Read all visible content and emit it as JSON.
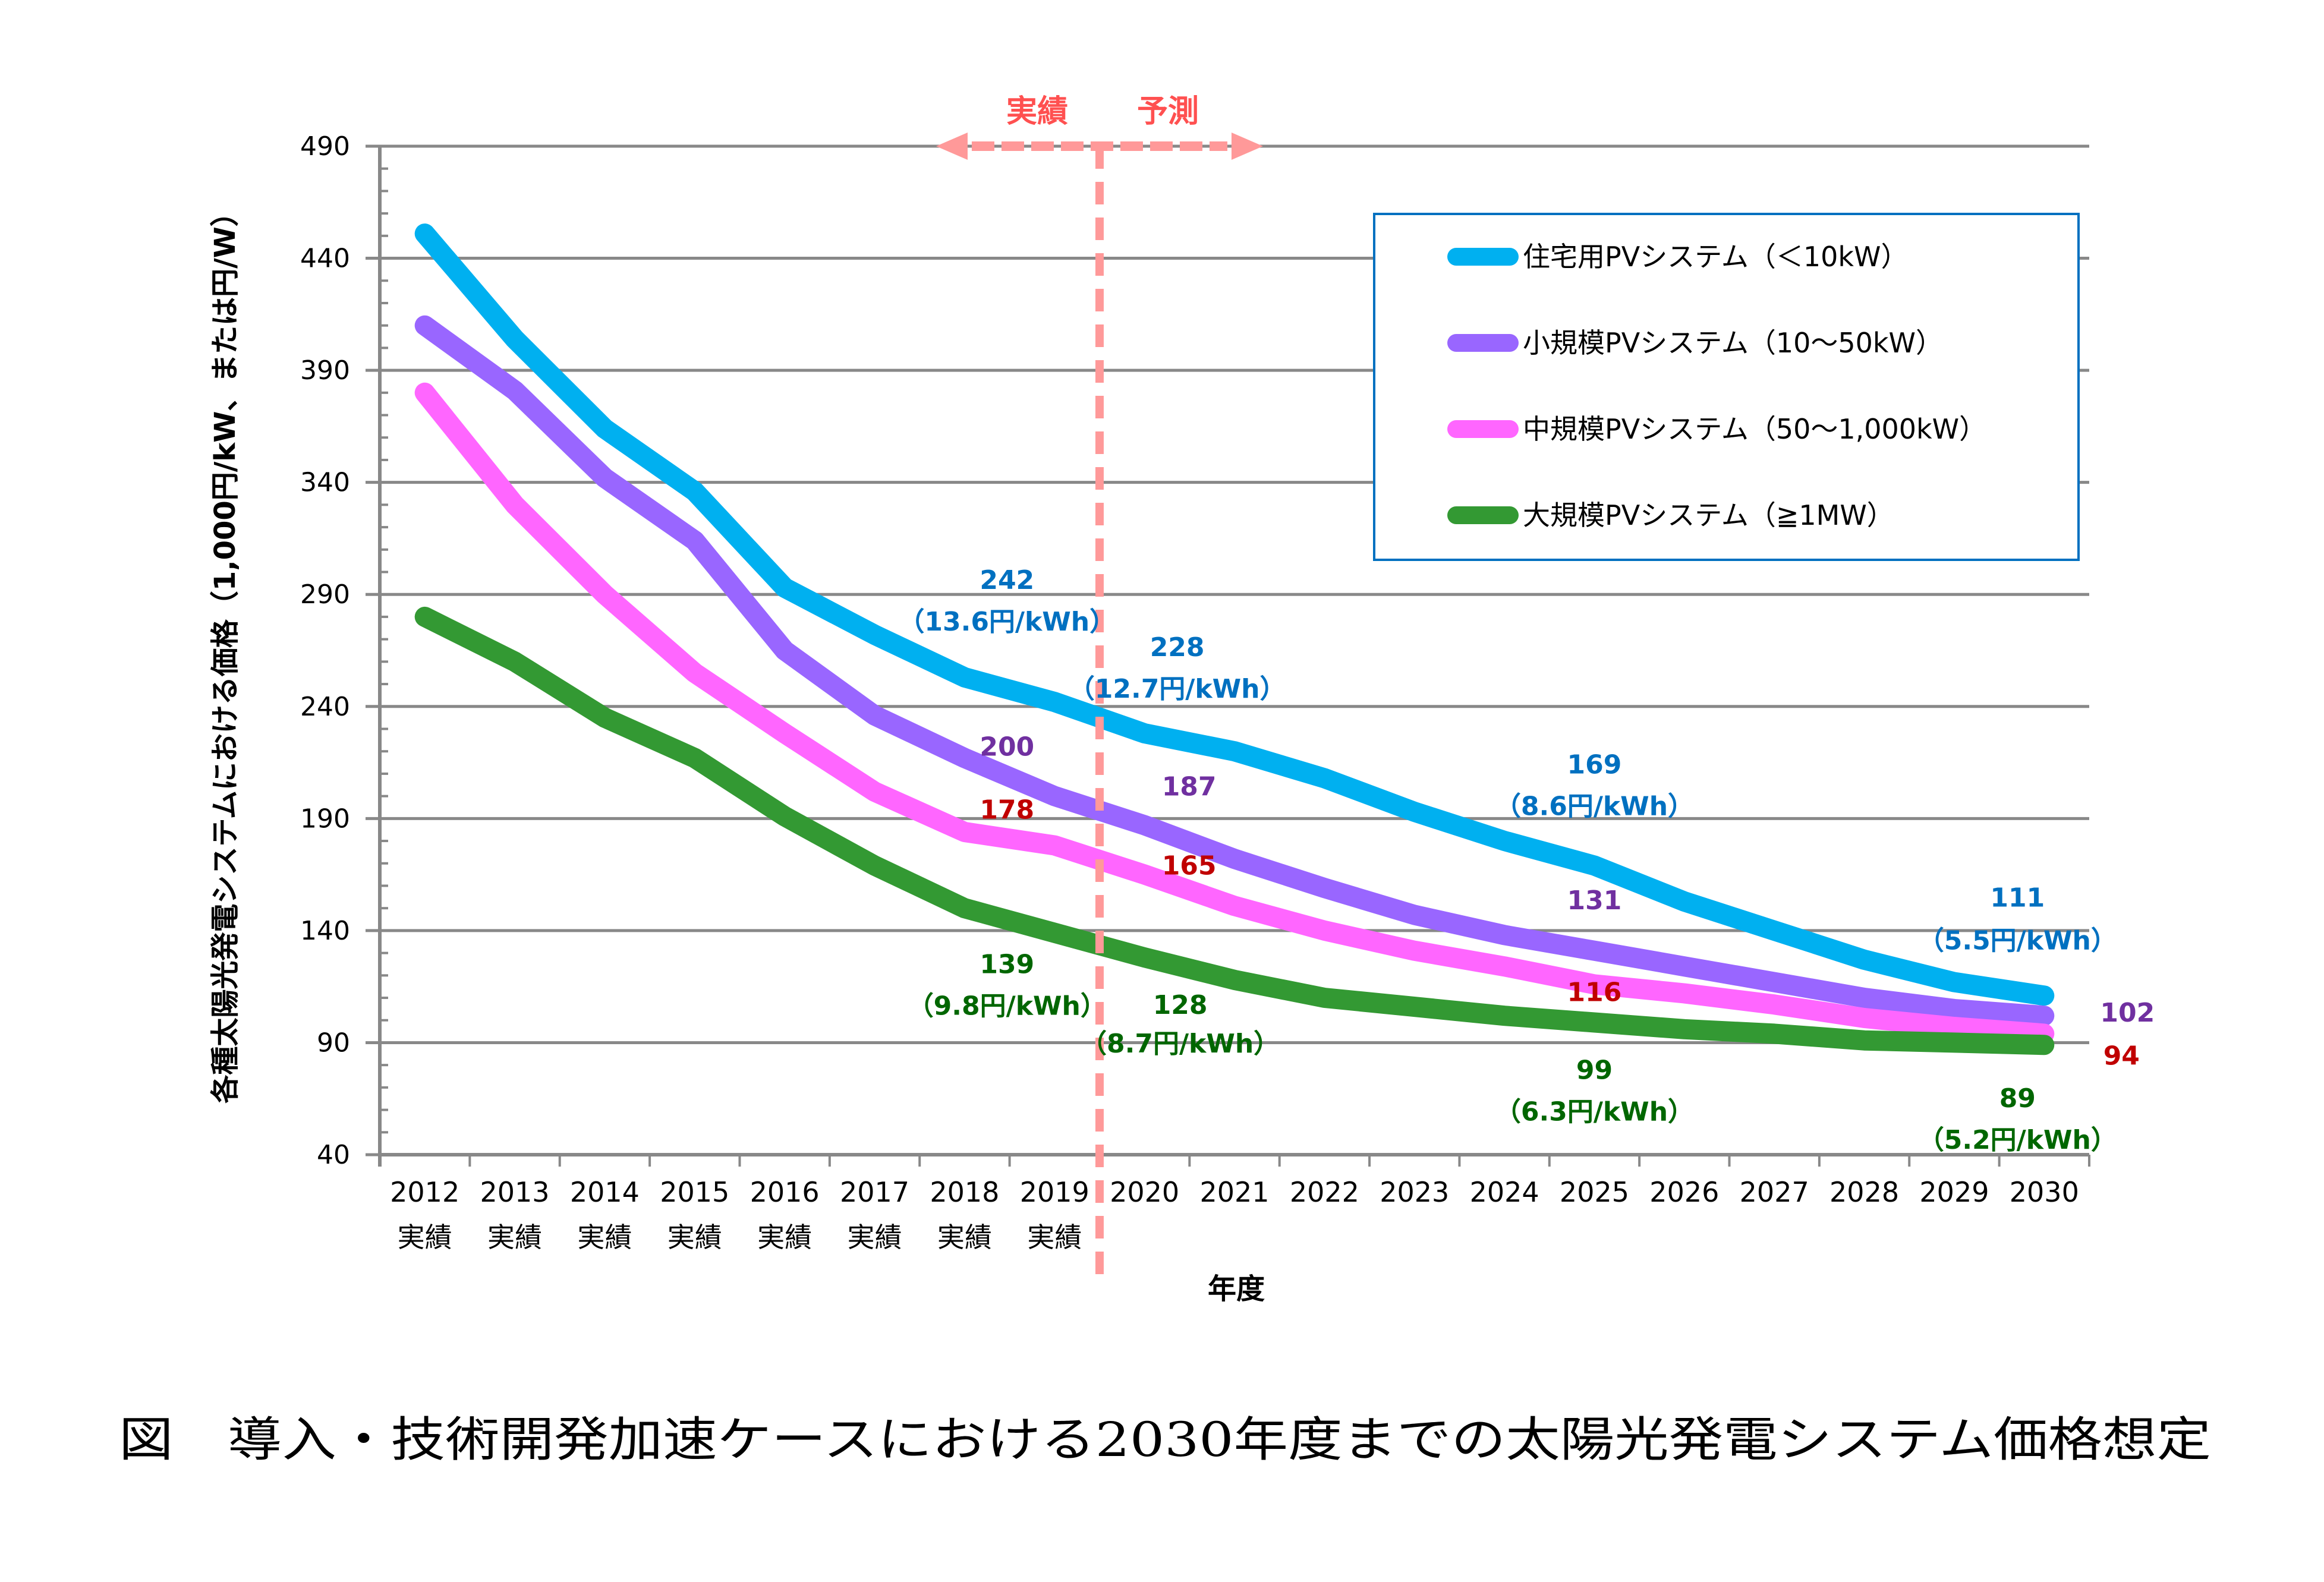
{
  "chart_data": {
    "type": "line",
    "title": "",
    "caption": "図　導入・技術開発加速ケースにおける2030年度までの太陽光発電システム価格想定",
    "xlabel": "年度",
    "ylabel": "各種太陽光発電システムにおける価格（1,000円/kW、または円/W）",
    "ylim": [
      40,
      490
    ],
    "yticks": [
      40,
      90,
      140,
      190,
      240,
      290,
      340,
      390,
      440,
      490
    ],
    "y_minor_step": 10,
    "grid": true,
    "legend_position": "top-right",
    "categories": [
      "2012",
      "2013",
      "2014",
      "2015",
      "2016",
      "2017",
      "2018",
      "2019",
      "2020",
      "2021",
      "2022",
      "2023",
      "2024",
      "2025",
      "2026",
      "2027",
      "2028",
      "2029",
      "2030"
    ],
    "category_sublabels": [
      "実績",
      "実績",
      "実績",
      "実績",
      "実績",
      "実績",
      "実績",
      "実績",
      "",
      "",
      "",
      "",
      "",
      "",
      "",
      "",
      "",
      "",
      ""
    ],
    "phase_divider": {
      "between": [
        "2019",
        "2020"
      ],
      "left_label": "実績",
      "right_label": "予測",
      "color": "#FF9999",
      "label_color": "#FF5050"
    },
    "series": [
      {
        "name": "住宅用PVシステム（＜10kW）",
        "color": "#00B0F0",
        "label_color": "#0070C0",
        "values": [
          451,
          404,
          364,
          336,
          293,
          272,
          253,
          242,
          228,
          220,
          208,
          193,
          180,
          169,
          153,
          140,
          127,
          117,
          111
        ]
      },
      {
        "name": "小規模PVシステム（10～50kW）",
        "color": "#9966FF",
        "label_color": "#7030A0",
        "values": [
          410,
          381,
          342,
          314,
          265,
          236,
          217,
          200,
          187,
          172,
          159,
          147,
          138,
          131,
          124,
          117,
          110,
          105,
          102
        ]
      },
      {
        "name": "中規模PVシステム（50～1,000kW）",
        "color": "#FF66FF",
        "label_color": "#C00000",
        "values": [
          380,
          330,
          290,
          255,
          228,
          202,
          184,
          178,
          165,
          151,
          140,
          131,
          124,
          116,
          112,
          107,
          101,
          97,
          94
        ]
      },
      {
        "name": "大規模PVシステム（≧1MW）",
        "color": "#339933",
        "label_color": "#006600",
        "values": [
          280,
          260,
          235,
          217,
          191,
          169,
          150,
          139,
          128,
          118,
          110,
          106,
          102,
          99,
          96,
          94,
          91,
          90,
          89
        ]
      }
    ],
    "annotations": [
      {
        "series": 0,
        "category": "2019",
        "value_text": "242",
        "sub_text": "（13.6円/kWh）"
      },
      {
        "series": 0,
        "category": "2020",
        "value_text": "228",
        "sub_text": "（12.7円/kWh）"
      },
      {
        "series": 0,
        "category": "2025",
        "value_text": "169",
        "sub_text": "（8.6円/kWh）"
      },
      {
        "series": 0,
        "category": "2030",
        "value_text": "111",
        "sub_text": "（5.5円/kWh）"
      },
      {
        "series": 1,
        "category": "2019",
        "value_text": "200",
        "sub_text": ""
      },
      {
        "series": 1,
        "category": "2020",
        "value_text": "187",
        "sub_text": ""
      },
      {
        "series": 1,
        "category": "2025",
        "value_text": "131",
        "sub_text": ""
      },
      {
        "series": 1,
        "category": "2030",
        "value_text": "102",
        "sub_text": ""
      },
      {
        "series": 2,
        "category": "2019",
        "value_text": "178",
        "sub_text": ""
      },
      {
        "series": 2,
        "category": "2020",
        "value_text": "165",
        "sub_text": ""
      },
      {
        "series": 2,
        "category": "2025",
        "value_text": "116",
        "sub_text": ""
      },
      {
        "series": 2,
        "category": "2030",
        "value_text": "94",
        "sub_text": ""
      },
      {
        "series": 3,
        "category": "2019",
        "value_text": "139",
        "sub_text": "（9.8円/kWh）"
      },
      {
        "series": 3,
        "category": "2020",
        "value_text": "128",
        "sub_text": "（8.7円/kWh）"
      },
      {
        "series": 3,
        "category": "2025",
        "value_text": "99",
        "sub_text": "（6.3円/kWh）"
      },
      {
        "series": 3,
        "category": "2030",
        "value_text": "89",
        "sub_text": "（5.2円/kWh）"
      }
    ]
  }
}
